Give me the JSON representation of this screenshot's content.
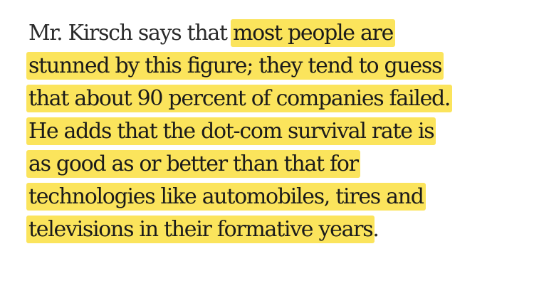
{
  "article": {
    "lines": [
      {
        "plain": "Mr. Kirsch says that ",
        "highlight": "most people are"
      },
      {
        "highlight": "stunned by this figure; they tend to guess"
      },
      {
        "highlight": "that about 90 percent of companies failed."
      },
      {
        "highlight": "He adds that the dot-com survival rate is"
      },
      {
        "highlight": "as good as or better than that for"
      },
      {
        "highlight": "technologies like automobiles, tires and"
      },
      {
        "highlight": "televisions in their formative years",
        "plain_after": "."
      }
    ]
  },
  "colors": {
    "highlight": "#fbe45c",
    "text": "#1a1a1a",
    "background": "#ffffff"
  }
}
